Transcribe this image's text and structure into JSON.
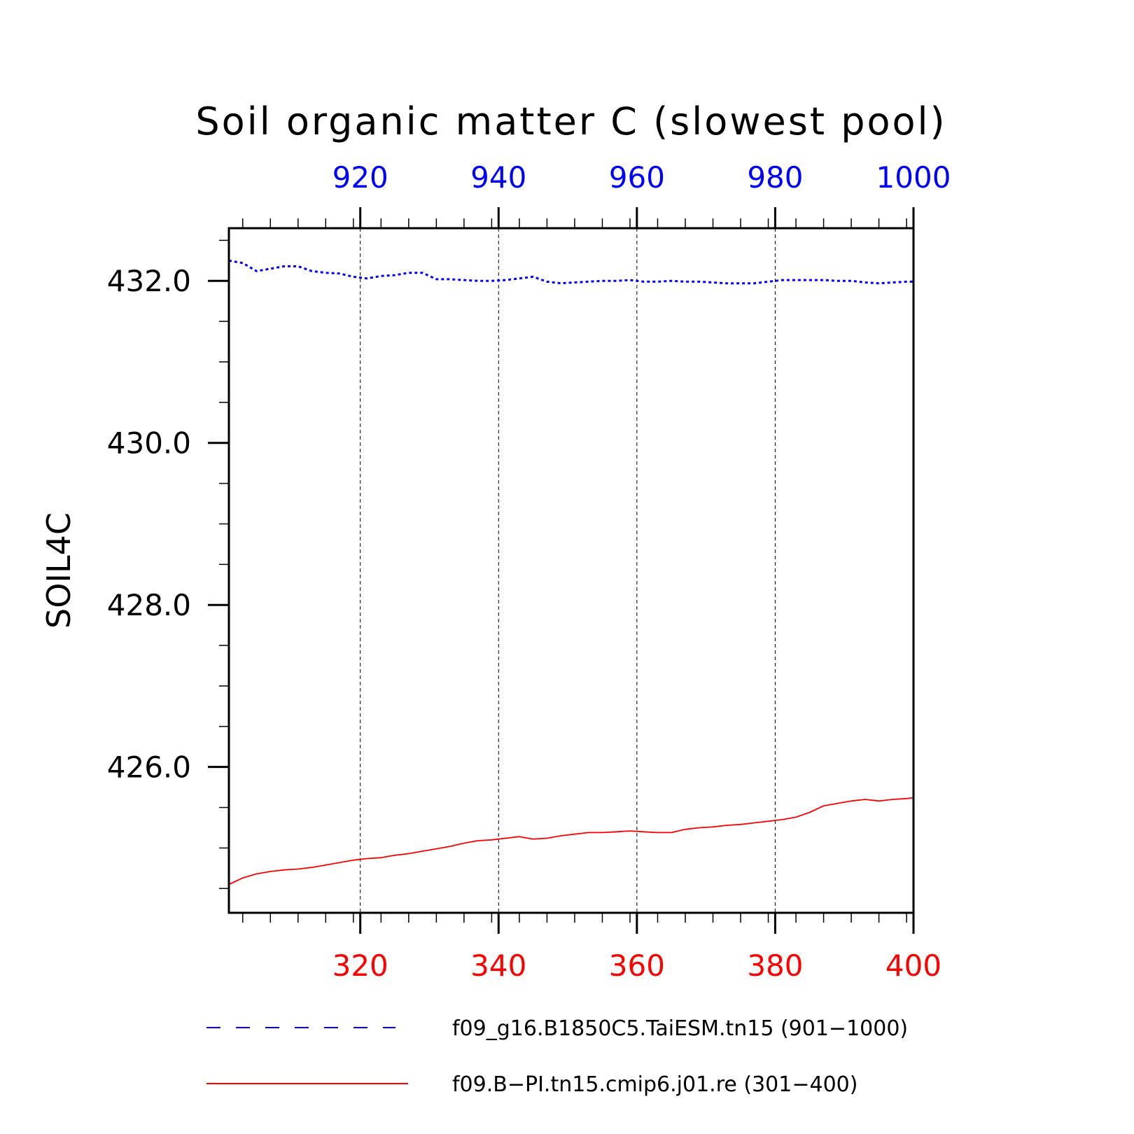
{
  "chart_data": {
    "type": "line",
    "title": "Soil organic matter C (slowest pool)",
    "ylabel": "SOIL4C",
    "ylim": [
      424.2,
      432.65
    ],
    "yticks": [
      426.0,
      428.0,
      430.0,
      432.0
    ],
    "ytick_labels": [
      "426.0",
      "428.0",
      "430.0",
      "432.0"
    ],
    "grid": "vertical dashed",
    "legend_position": "bottom",
    "x_bottom": {
      "color": "#ff0000",
      "range": [
        301,
        400
      ],
      "ticks": [
        320,
        340,
        360,
        380,
        400
      ],
      "tick_labels": [
        "320",
        "340",
        "360",
        "380",
        "400"
      ]
    },
    "x_top": {
      "color": "#0000ff",
      "range": [
        901,
        1000
      ],
      "ticks": [
        920,
        940,
        960,
        980,
        1000
      ],
      "tick_labels": [
        "920",
        "940",
        "960",
        "980",
        "1000"
      ]
    },
    "series": [
      {
        "name": "f09_g16.B1850C5.TaiESM.tn15 (901−1000)",
        "color": "#0000ff",
        "dash": "dotted",
        "axis": "top",
        "x": [
          901,
          903,
          905,
          907,
          909,
          911,
          913,
          915,
          917,
          919,
          921,
          923,
          925,
          927,
          929,
          931,
          933,
          935,
          937,
          939,
          941,
          943,
          945,
          947,
          949,
          951,
          953,
          955,
          957,
          959,
          961,
          963,
          965,
          967,
          969,
          971,
          973,
          975,
          977,
          979,
          981,
          983,
          985,
          987,
          989,
          991,
          993,
          995,
          997,
          999,
          1000
        ],
        "values": [
          432.25,
          432.22,
          432.12,
          432.15,
          432.18,
          432.18,
          432.12,
          432.1,
          432.09,
          432.05,
          432.03,
          432.06,
          432.07,
          432.1,
          432.1,
          432.02,
          432.02,
          432.01,
          432.0,
          432.0,
          432.01,
          432.03,
          432.05,
          431.99,
          431.97,
          431.98,
          431.99,
          432.0,
          432.0,
          432.01,
          431.99,
          431.99,
          432.0,
          431.99,
          431.99,
          431.98,
          431.97,
          431.97,
          431.97,
          431.99,
          432.01,
          432.01,
          432.01,
          432.01,
          432.0,
          432.0,
          431.98,
          431.97,
          431.98,
          431.99,
          431.99
        ]
      },
      {
        "name": "f09.B−PI.tn15.cmip6.j01.re (301−400)",
        "color": "#ff0000",
        "dash": "solid",
        "axis": "bottom",
        "x": [
          301,
          303,
          305,
          307,
          309,
          311,
          313,
          315,
          317,
          319,
          321,
          323,
          325,
          327,
          329,
          331,
          333,
          335,
          337,
          339,
          341,
          343,
          345,
          347,
          349,
          351,
          353,
          355,
          357,
          359,
          361,
          363,
          365,
          367,
          369,
          371,
          373,
          375,
          377,
          379,
          381,
          383,
          385,
          387,
          389,
          391,
          393,
          395,
          397,
          399,
          400
        ],
        "values": [
          424.55,
          424.63,
          424.68,
          424.71,
          424.73,
          424.74,
          424.76,
          424.79,
          424.82,
          424.85,
          424.87,
          424.88,
          424.91,
          424.93,
          424.96,
          424.99,
          425.02,
          425.06,
          425.09,
          425.1,
          425.12,
          425.14,
          425.11,
          425.12,
          425.15,
          425.17,
          425.19,
          425.19,
          425.2,
          425.21,
          425.2,
          425.19,
          425.19,
          425.23,
          425.25,
          425.26,
          425.28,
          425.29,
          425.31,
          425.33,
          425.35,
          425.38,
          425.44,
          425.52,
          425.55,
          425.58,
          425.6,
          425.58,
          425.6,
          425.61,
          425.62
        ]
      }
    ]
  }
}
